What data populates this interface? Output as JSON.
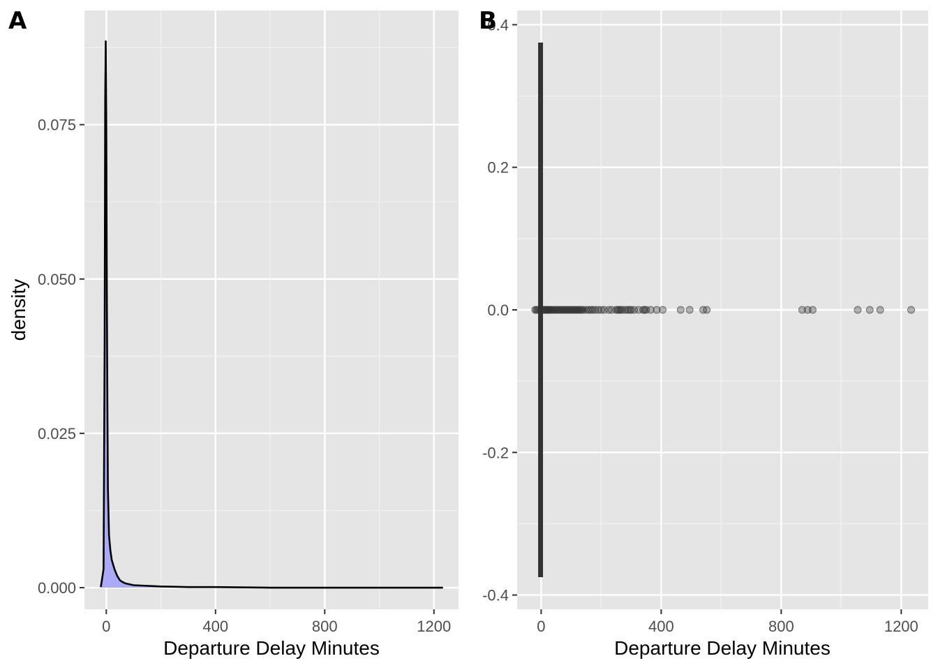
{
  "chart_data": [
    {
      "panel": "A",
      "type": "area",
      "geom": "density",
      "xlabel": "Departure Delay Minutes",
      "ylabel": "density",
      "xlim": [
        -80,
        1290
      ],
      "ylim": [
        -0.0035,
        0.0935
      ],
      "x_ticks": [
        0,
        400,
        800,
        1200
      ],
      "x_tick_labels": [
        "0",
        "400",
        "800",
        "1200"
      ],
      "y_ticks": [
        0.0,
        0.025,
        0.05,
        0.075
      ],
      "y_tick_labels": [
        "0.000",
        "0.025",
        "0.050",
        "0.075"
      ],
      "grid": true,
      "fill_color": "#aaaaf7",
      "line_color": "#000000",
      "x": [
        -20,
        -10,
        -6,
        -4,
        -2,
        0,
        2,
        4,
        6,
        10,
        15,
        20,
        30,
        40,
        50,
        60,
        70,
        80,
        100,
        150,
        200,
        300,
        400,
        600,
        800,
        1000,
        1233
      ],
      "y": [
        0.0001,
        0.003,
        0.04,
        0.079,
        0.0885,
        0.075,
        0.048,
        0.03,
        0.016,
        0.0085,
        0.006,
        0.0045,
        0.003,
        0.0019,
        0.0012,
        0.0009,
        0.0007,
        0.0006,
        0.0004,
        0.0003,
        0.0002,
        0.0001,
        0.0001,
        0.0,
        0.0,
        0.0,
        0.0
      ]
    },
    {
      "panel": "B",
      "type": "scatter",
      "geom": "boxplot",
      "xlabel": "Departure Delay Minutes",
      "ylabel": "",
      "xlim": [
        -80,
        1290
      ],
      "ylim": [
        -0.42,
        0.42
      ],
      "x_ticks": [
        0,
        400,
        800,
        1200
      ],
      "x_tick_labels": [
        "0",
        "400",
        "800",
        "1200"
      ],
      "y_ticks": [
        -0.4,
        -0.2,
        0.0,
        0.2,
        0.4
      ],
      "y_tick_labels": [
        "-0.4",
        "-0.2",
        "0.0",
        "0.2",
        "0.4"
      ],
      "grid": true,
      "box": {
        "ymin": -0.375,
        "ymax": 0.375,
        "x": -2,
        "color": "#333333"
      },
      "outlier_color": "#333333",
      "outliers_y": 0.0,
      "outliers_x": [
        -20,
        -16,
        -12,
        5,
        8,
        12,
        15,
        18,
        22,
        25,
        28,
        32,
        35,
        40,
        45,
        50,
        55,
        60,
        65,
        70,
        75,
        80,
        85,
        90,
        95,
        100,
        105,
        110,
        115,
        120,
        125,
        130,
        135,
        140,
        150,
        158,
        165,
        172,
        180,
        190,
        200,
        210,
        225,
        235,
        250,
        255,
        260,
        265,
        270,
        280,
        288,
        295,
        300,
        310,
        325,
        340,
        345,
        350,
        365,
        385,
        405,
        465,
        495,
        540,
        552,
        870,
        888,
        905,
        1055,
        1095,
        1130,
        1233
      ]
    }
  ],
  "panels": {
    "a": {
      "tag": "A"
    },
    "b": {
      "tag": "B"
    }
  }
}
